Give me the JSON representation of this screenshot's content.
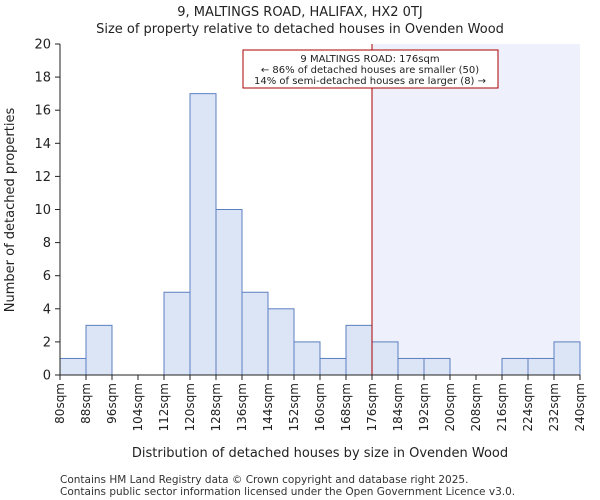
{
  "chart_data": {
    "type": "bar",
    "title_line1": "9, MALTINGS ROAD, HALIFAX, HX2 0TJ",
    "title_line2": "Size of property relative to detached houses in Ovenden Wood",
    "xlabel": "Distribution of detached houses by size in Ovenden Wood",
    "ylabel": "Number of detached properties",
    "bin_edges": [
      80,
      88,
      96,
      104,
      112,
      120,
      128,
      136,
      144,
      152,
      160,
      168,
      176,
      184,
      192,
      200,
      208,
      216,
      224,
      232,
      240
    ],
    "x_tick_labels": [
      "80sqm",
      "88sqm",
      "96sqm",
      "104sqm",
      "112sqm",
      "120sqm",
      "128sqm",
      "136sqm",
      "144sqm",
      "152sqm",
      "160sqm",
      "168sqm",
      "176sqm",
      "184sqm",
      "192sqm",
      "200sqm",
      "208sqm",
      "216sqm",
      "224sqm",
      "232sqm",
      "240sqm"
    ],
    "values": [
      1,
      3,
      0,
      0,
      5,
      17,
      10,
      5,
      4,
      2,
      1,
      3,
      2,
      1,
      1,
      0,
      0,
      1,
      1,
      2
    ],
    "ylim": [
      0,
      20
    ],
    "y_ticks": [
      0,
      2,
      4,
      6,
      8,
      10,
      12,
      14,
      16,
      18,
      20
    ],
    "marker_value": 176,
    "annotation": {
      "line1": "9 MALTINGS ROAD: 176sqm",
      "line2": "← 86% of detached houses are smaller (50)",
      "line3": "14% of semi-detached houses are larger (8) →"
    },
    "colors": {
      "bar_fill": "#dbe5f5",
      "bar_edge": "#5c7fc2",
      "marker": "#aa0000",
      "highlight": "#eef1fb",
      "axis": "#222222"
    }
  },
  "footer": {
    "line1": "Contains HM Land Registry data © Crown copyright and database right 2025.",
    "line2": "Contains public sector information licensed under the Open Government Licence v3.0."
  }
}
